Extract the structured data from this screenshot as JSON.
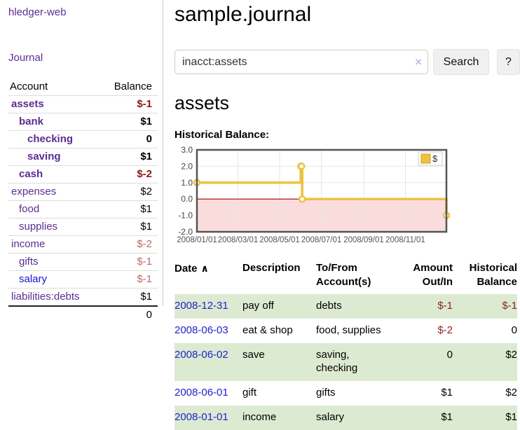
{
  "app": {
    "title": "hledger-web",
    "nav_journal": "Journal"
  },
  "sidebar": {
    "headers": {
      "account": "Account",
      "balance": "Balance"
    },
    "accounts": [
      {
        "name": "assets",
        "indent": 1,
        "bold": true,
        "balance": "$-1",
        "neg": "strong",
        "link_style": "purple"
      },
      {
        "name": "bank",
        "indent": 2,
        "bold": true,
        "balance": "$1",
        "neg": "none",
        "link_style": "purple"
      },
      {
        "name": "checking",
        "indent": 3,
        "bold": true,
        "balance": "0",
        "neg": "none",
        "link_style": "purple"
      },
      {
        "name": "saving",
        "indent": 3,
        "bold": true,
        "balance": "$1",
        "neg": "none",
        "link_style": "purple"
      },
      {
        "name": "cash",
        "indent": 2,
        "bold": true,
        "balance": "$-2",
        "neg": "strong",
        "link_style": "purple"
      },
      {
        "name": "expenses",
        "indent": 1,
        "bold": false,
        "balance": "$2",
        "neg": "none",
        "link_style": "purple"
      },
      {
        "name": "food",
        "indent": 2,
        "bold": false,
        "balance": "$1",
        "neg": "none",
        "link_style": "purple"
      },
      {
        "name": "supplies",
        "indent": 2,
        "bold": false,
        "balance": "$1",
        "neg": "none",
        "link_style": "purple"
      },
      {
        "name": "income",
        "indent": 1,
        "bold": false,
        "balance": "$-2",
        "neg": "soft",
        "link_style": "purple"
      },
      {
        "name": "gifts",
        "indent": 2,
        "bold": false,
        "balance": "$-1",
        "neg": "soft",
        "link_style": "purple"
      },
      {
        "name": "salary",
        "indent": 2,
        "bold": false,
        "balance": "$-1",
        "neg": "soft",
        "link_style": "blue"
      },
      {
        "name": "liabilities:debts",
        "indent": 1,
        "bold": false,
        "balance": "$1",
        "neg": "none",
        "link_style": "purple"
      }
    ],
    "total": "0"
  },
  "header": {
    "title": "sample.journal"
  },
  "search": {
    "query": "inacct:assets",
    "clear_icon": "×",
    "search_button": "Search",
    "help_button": "?"
  },
  "account_page": {
    "heading": "assets",
    "chart_label": "Historical Balance:"
  },
  "chart_data": {
    "type": "line",
    "step": true,
    "title": "Historical Balance",
    "series": [
      {
        "name": "$",
        "points": [
          [
            "2008-01-01",
            1
          ],
          [
            "2008-06-01",
            2
          ],
          [
            "2008-06-02",
            2
          ],
          [
            "2008-06-03",
            0
          ],
          [
            "2008-12-31",
            -1
          ]
        ]
      }
    ],
    "xlim": [
      "2008-01-01",
      "2008-12-31"
    ],
    "ylim": [
      -2,
      3
    ],
    "x_ticks": [
      {
        "date": "2008-01-01",
        "label": "2008/01/01"
      },
      {
        "date": "2008-03-01",
        "label": "2008/03/01"
      },
      {
        "date": "2008-05-01",
        "label": "2008/05/01"
      },
      {
        "date": "2008-07-01",
        "label": "2008/07/01"
      },
      {
        "date": "2008-09-01",
        "label": "2008/09/01"
      },
      {
        "date": "2008-11-01",
        "label": "2008/11/01"
      }
    ],
    "y_ticks": [
      {
        "v": 3,
        "label": "3.0"
      },
      {
        "v": 2,
        "label": "2.0"
      },
      {
        "v": 1,
        "label": "1.0"
      },
      {
        "v": 0,
        "label": "0.0"
      },
      {
        "v": -1,
        "label": "-1.0"
      },
      {
        "v": -2,
        "label": "-2.0"
      }
    ],
    "grid": true,
    "legend_position": "top-right",
    "colors": {
      "line": "#edc240",
      "marker_fill": "#ffffff",
      "negative_region": "#fbdcdc",
      "zero_line": "#a40000",
      "grid": "#e6e6e6",
      "border": "#545454",
      "tick_text": "#545454",
      "legend_border": "#cfcfcf"
    }
  },
  "register": {
    "headers": {
      "date": {
        "line1": "Date",
        "sort": "∧"
      },
      "description": {
        "line1": "Description",
        "line2": ""
      },
      "accounts": {
        "line1": "To/From",
        "line2": "Account(s)"
      },
      "amount": {
        "line1": "Amount",
        "line2": "Out/In"
      },
      "balance": {
        "line1": "Historical",
        "line2": "Balance"
      }
    },
    "rows": [
      {
        "date": "2008-12-31",
        "description": "pay off",
        "accounts": "debts",
        "amount": "$-1",
        "amount_neg": true,
        "balance": "$-1",
        "balance_neg": true
      },
      {
        "date": "2008-06-03",
        "description": "eat & shop",
        "accounts": "food, supplies",
        "amount": "$-2",
        "amount_neg": true,
        "balance": "0",
        "balance_neg": false
      },
      {
        "date": "2008-06-02",
        "description": "save",
        "accounts": "saving, checking",
        "amount": "0",
        "amount_neg": false,
        "balance": "$2",
        "balance_neg": false
      },
      {
        "date": "2008-06-01",
        "description": "gift",
        "accounts": "gifts",
        "amount": "$1",
        "amount_neg": false,
        "balance": "$2",
        "balance_neg": false
      },
      {
        "date": "2008-01-01",
        "description": "income",
        "accounts": "salary",
        "amount": "$1",
        "amount_neg": false,
        "balance": "$1",
        "balance_neg": false
      }
    ]
  }
}
